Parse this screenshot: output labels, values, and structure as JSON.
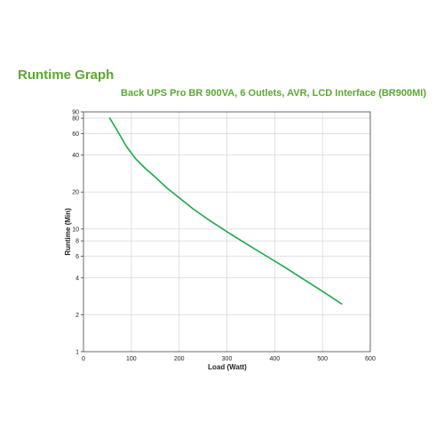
{
  "header": {
    "title": "Runtime Graph"
  },
  "chart_data": {
    "type": "line",
    "title": "Back UPS Pro BR 900VA, 6 Outlets, AVR, LCD Interface (BR900MI)",
    "xlabel": "Load (Watt)",
    "ylabel": "Runtime (Min)",
    "xlim": [
      0,
      600
    ],
    "ylim": [
      1,
      90
    ],
    "yscale": "log",
    "grid": true,
    "legend": "none",
    "x_ticks": [
      0,
      100,
      200,
      300,
      400,
      500,
      600
    ],
    "y_ticks": [
      1,
      2,
      4,
      6,
      8,
      10,
      20,
      40,
      60,
      80,
      90
    ],
    "series": [
      {
        "color": "#1aa84a",
        "x": [
          55,
          70,
          90,
          110,
          130,
          150,
          175,
          200,
          230,
          260,
          300,
          340,
          380,
          420,
          460,
          500,
          540
        ],
        "y": [
          80,
          64,
          47,
          37,
          31,
          26.5,
          21.5,
          18,
          14.5,
          12,
          9.5,
          7.6,
          6.1,
          4.9,
          3.9,
          3.1,
          2.45
        ]
      }
    ]
  }
}
